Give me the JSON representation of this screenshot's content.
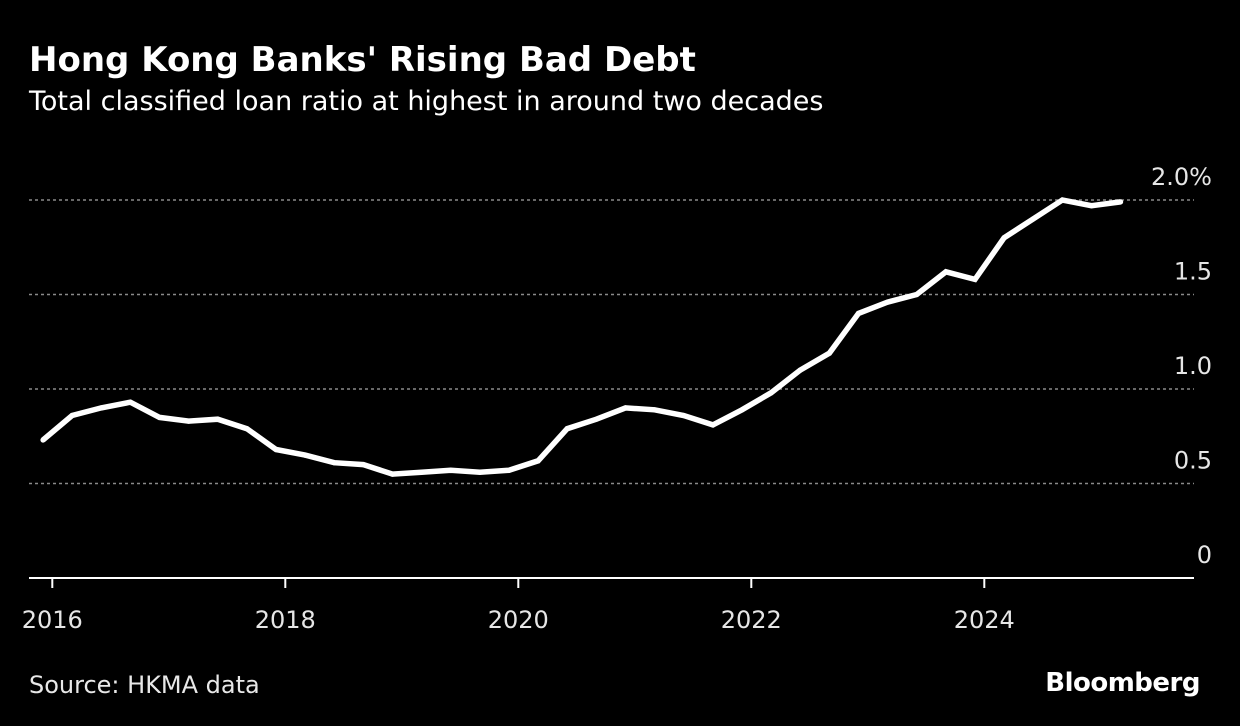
{
  "header": {
    "title": "Hong Kong Banks' Rising Bad Debt",
    "subtitle": "Total classified loan ratio at highest in around two decades"
  },
  "footer": {
    "source": "Source: HKMA data",
    "brand": "Bloomberg"
  },
  "colors": {
    "background": "#000000",
    "line": "#ffffff",
    "gridline": "#8a8a8a",
    "axis": "#ffffff",
    "text": "#ffffff"
  },
  "chart_data": {
    "type": "line",
    "title": "Hong Kong Banks' Rising Bad Debt",
    "subtitle": "Total classified loan ratio at highest in around two decades",
    "xlabel": "",
    "ylabel": "",
    "x_range": [
      2015.8,
      2025.8
    ],
    "ylim": [
      0,
      2.0
    ],
    "y_unit": "%",
    "y_ticks": [
      {
        "value": 0,
        "label": "0"
      },
      {
        "value": 0.5,
        "label": "0.5"
      },
      {
        "value": 1.0,
        "label": "1.0"
      },
      {
        "value": 1.5,
        "label": "1.5"
      },
      {
        "value": 2.0,
        "label": "2.0%"
      }
    ],
    "x_ticks": [
      {
        "value": 2016,
        "label": "2016"
      },
      {
        "value": 2018,
        "label": "2018"
      },
      {
        "value": 2020,
        "label": "2020"
      },
      {
        "value": 2022,
        "label": "2022"
      },
      {
        "value": 2024,
        "label": "2024"
      }
    ],
    "grid": "horizontal dotted",
    "legend": "none",
    "series": [
      {
        "points": [
          {
            "x": "Q4 2015",
            "t": 2015.92,
            "y": 0.73
          },
          {
            "x": "Q1 2016",
            "t": 2016.17,
            "y": 0.86
          },
          {
            "x": "Q2 2016",
            "t": 2016.42,
            "y": 0.9
          },
          {
            "x": "Q3 2016",
            "t": 2016.67,
            "y": 0.93
          },
          {
            "x": "Q4 2016",
            "t": 2016.92,
            "y": 0.85
          },
          {
            "x": "Q1 2017",
            "t": 2017.17,
            "y": 0.83
          },
          {
            "x": "Q2 2017",
            "t": 2017.42,
            "y": 0.84
          },
          {
            "x": "Q3 2017",
            "t": 2017.67,
            "y": 0.79
          },
          {
            "x": "Q4 2017",
            "t": 2017.92,
            "y": 0.68
          },
          {
            "x": "Q1 2018",
            "t": 2018.17,
            "y": 0.65
          },
          {
            "x": "Q2 2018",
            "t": 2018.42,
            "y": 0.61
          },
          {
            "x": "Q3 2018",
            "t": 2018.67,
            "y": 0.6
          },
          {
            "x": "Q4 2018",
            "t": 2018.92,
            "y": 0.55
          },
          {
            "x": "Q1 2019",
            "t": 2019.17,
            "y": 0.56
          },
          {
            "x": "Q2 2019",
            "t": 2019.42,
            "y": 0.57
          },
          {
            "x": "Q3 2019",
            "t": 2019.67,
            "y": 0.56
          },
          {
            "x": "Q4 2019",
            "t": 2019.92,
            "y": 0.57
          },
          {
            "x": "Q1 2020",
            "t": 2020.17,
            "y": 0.62
          },
          {
            "x": "Q2 2020",
            "t": 2020.42,
            "y": 0.79
          },
          {
            "x": "Q3 2020",
            "t": 2020.67,
            "y": 0.84
          },
          {
            "x": "Q4 2020",
            "t": 2020.92,
            "y": 0.9
          },
          {
            "x": "Q1 2021",
            "t": 2021.17,
            "y": 0.89
          },
          {
            "x": "Q2 2021",
            "t": 2021.42,
            "y": 0.86
          },
          {
            "x": "Q3 2021",
            "t": 2021.67,
            "y": 0.81
          },
          {
            "x": "Q4 2021",
            "t": 2021.92,
            "y": 0.89
          },
          {
            "x": "Q1 2022",
            "t": 2022.17,
            "y": 0.98
          },
          {
            "x": "Q2 2022",
            "t": 2022.42,
            "y": 1.1
          },
          {
            "x": "Q3 2022",
            "t": 2022.67,
            "y": 1.19
          },
          {
            "x": "Q4 2022",
            "t": 2022.92,
            "y": 1.4
          },
          {
            "x": "Q1 2023",
            "t": 2023.17,
            "y": 1.46
          },
          {
            "x": "Q2 2023",
            "t": 2023.42,
            "y": 1.5
          },
          {
            "x": "Q3 2023",
            "t": 2023.67,
            "y": 1.62
          },
          {
            "x": "Q4 2023",
            "t": 2023.92,
            "y": 1.58
          },
          {
            "x": "Q1 2024",
            "t": 2024.17,
            "y": 1.8
          },
          {
            "x": "Q2 2024",
            "t": 2024.42,
            "y": 1.9
          },
          {
            "x": "Q3 2024",
            "t": 2024.67,
            "y": 2.0
          },
          {
            "x": "Q4 2024",
            "t": 2024.92,
            "y": 1.97
          },
          {
            "x": "Q1 2025",
            "t": 2025.17,
            "y": 1.99
          }
        ]
      }
    ]
  }
}
